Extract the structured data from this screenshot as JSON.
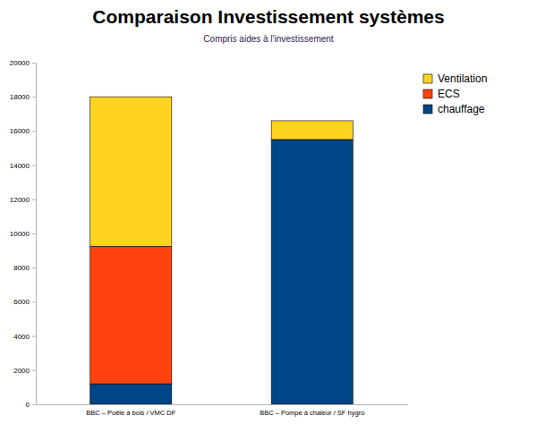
{
  "chart_data": {
    "type": "bar",
    "stacked": true,
    "title": "Comparaison Investissement systèmes",
    "subtitle": "Compris aides à l'investissement",
    "categories": [
      "BBC – Poêle à bois / VMC DF",
      "BBC – Pompe à chaleur / SF hygro"
    ],
    "series": [
      {
        "name": "chauffage",
        "color": "#004586",
        "values": [
          1200,
          15500
        ]
      },
      {
        "name": "ECS",
        "color": "#ff420e",
        "values": [
          8050,
          0
        ]
      },
      {
        "name": "Ventilation",
        "color": "#ffd320",
        "values": [
          8750,
          1100
        ]
      }
    ],
    "ylim": [
      0,
      20000
    ],
    "yticks": [
      0,
      2000,
      4000,
      6000,
      8000,
      10000,
      12000,
      14000,
      16000,
      18000,
      20000
    ],
    "grid": false,
    "legend": "right"
  }
}
